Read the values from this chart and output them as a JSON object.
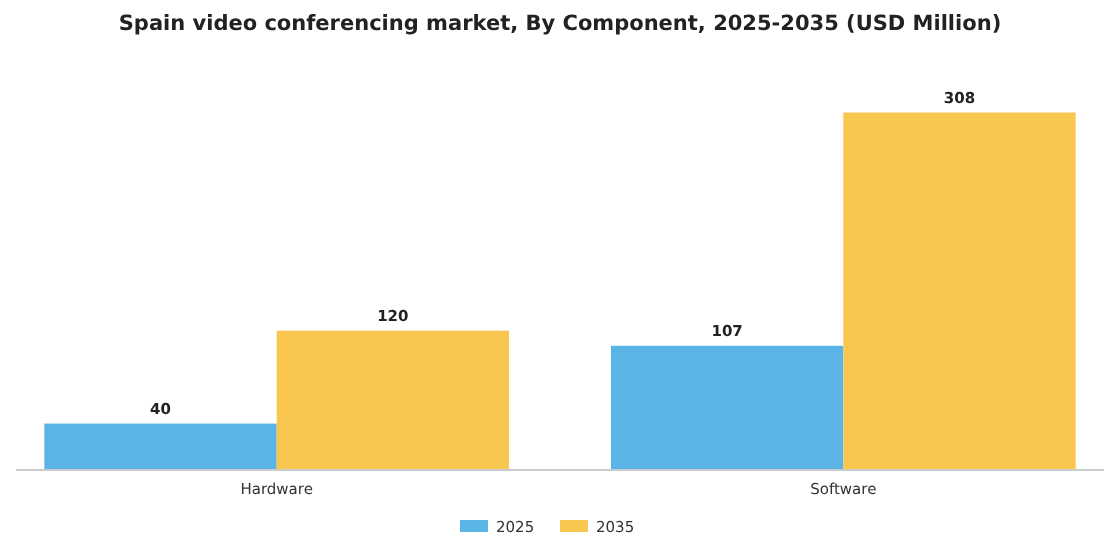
{
  "chart_data": {
    "type": "bar",
    "title": "Spain video conferencing market, By Component, 2025-2035 (USD Million)",
    "categories": [
      "Hardware",
      "Software"
    ],
    "series": [
      {
        "name": "2025",
        "color": "#5ab4e5",
        "values": [
          40,
          107
        ]
      },
      {
        "name": "2035",
        "color": "#f9c74f",
        "values": [
          120,
          308
        ]
      }
    ],
    "data_labels": true,
    "legend": "bottom",
    "tick_labels": "x",
    "grid": false
  }
}
